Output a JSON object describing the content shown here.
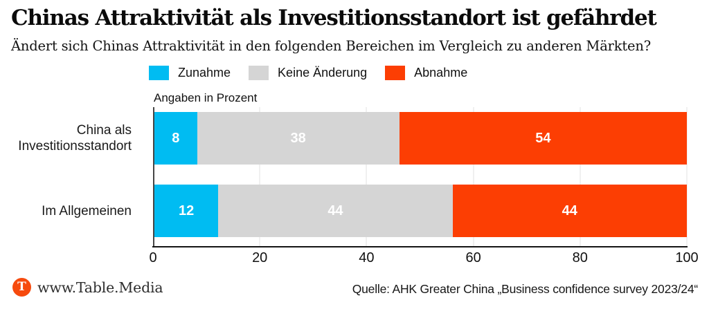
{
  "header": {
    "title": "Chinas Attraktivität als Investitionsstandort ist gefährdet",
    "subtitle": "Ändert sich Chinas Attraktivität in den folgenden Bereichen im Vergleich zu anderen Märkten?"
  },
  "chart_data": {
    "type": "bar",
    "orientation": "horizontal",
    "stacked": true,
    "units_note": "Angaben in Prozent",
    "categories": [
      "China als Investitionsstandort",
      "Im Allgemeinen"
    ],
    "series": [
      {
        "name": "Zunahme",
        "color": "#00bcf2",
        "values": [
          8,
          12
        ]
      },
      {
        "name": "Keine Änderung",
        "color": "#d5d5d5",
        "values": [
          38,
          44
        ]
      },
      {
        "name": "Abnahme",
        "color": "#fc3e03",
        "values": [
          54,
          44
        ]
      }
    ],
    "x_ticks": [
      0,
      20,
      40,
      60,
      80,
      100
    ],
    "xlim": [
      0,
      100
    ],
    "legend_position": "top",
    "grid": true,
    "value_labels_color": "#ffffff"
  },
  "footer": {
    "brand": "www.Table.Media",
    "brand_logo_letter": "T",
    "brand_logo_color": "#f64a0d",
    "source": "Quelle: AHK Greater China „Business confidence survey 2023/24“"
  }
}
